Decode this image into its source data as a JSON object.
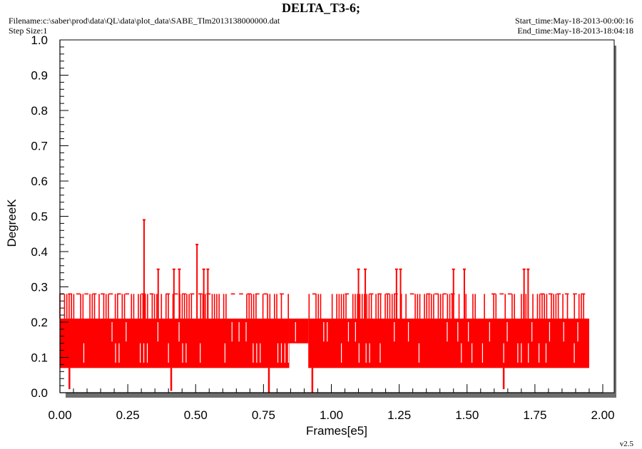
{
  "header": {
    "title": "DELTA_T3-6;",
    "filename": "Filename:c:\\saber\\prod\\data\\QL\\data\\plot_data\\SABE_Tlm2013138000000.dat",
    "step_size": "Step Size:1",
    "start_time": "Start_time:May-18-2013-00:00:16",
    "end_time": "End_time:May-18-2013-18:04:18"
  },
  "version": "v2.5",
  "colors": {
    "series": "#ff0000",
    "shadow": "#6e6e6e",
    "axis": "#000000"
  },
  "chart_data": {
    "type": "line",
    "title": "DELTA_T3-6;",
    "xlabel": "Frames[e5]",
    "ylabel": "DegreeK",
    "xlim": [
      0,
      2.0
    ],
    "ylim": [
      0,
      1.0
    ],
    "xticks": [
      "0.00",
      "0.25",
      "0.50",
      "0.75",
      "1.00",
      "1.25",
      "1.50",
      "1.75",
      "2.00"
    ],
    "yticks": [
      "0.0",
      "0.1",
      "0.2",
      "0.3",
      "0.4",
      "0.5",
      "0.6",
      "0.7",
      "0.8",
      "0.9",
      "1.0"
    ],
    "grid": false,
    "legend": "none",
    "series": [
      {
        "band": {
          "x_start": 0.0,
          "x_end": 1.95,
          "low": 0.07,
          "high": 0.21,
          "upper": 0.28
        },
        "gap": {
          "x_start": 0.845,
          "x_end": 0.915,
          "low": 0.14,
          "high": 0.21
        },
        "spikes": [
          {
            "x": 0.31,
            "y": 0.49
          },
          {
            "x": 0.362,
            "y": 0.35
          },
          {
            "x": 0.42,
            "y": 0.35
          },
          {
            "x": 0.44,
            "y": 0.35
          },
          {
            "x": 0.505,
            "y": 0.42
          },
          {
            "x": 0.53,
            "y": 0.35
          },
          {
            "x": 0.545,
            "y": 0.35
          },
          {
            "x": 1.1,
            "y": 0.35
          },
          {
            "x": 1.125,
            "y": 0.35
          },
          {
            "x": 1.24,
            "y": 0.35
          },
          {
            "x": 1.255,
            "y": 0.35
          },
          {
            "x": 1.45,
            "y": 0.35
          },
          {
            "x": 1.49,
            "y": 0.35
          },
          {
            "x": 1.71,
            "y": 0.35
          },
          {
            "x": 1.725,
            "y": 0.35
          }
        ],
        "dips": [
          {
            "x": 0.035,
            "y": 0.01
          },
          {
            "x": 0.41,
            "y": 0.005
          },
          {
            "x": 0.77,
            "y": 0.0
          },
          {
            "x": 0.93,
            "y": 0.0
          },
          {
            "x": 1.635,
            "y": 0.01
          }
        ]
      }
    ]
  }
}
